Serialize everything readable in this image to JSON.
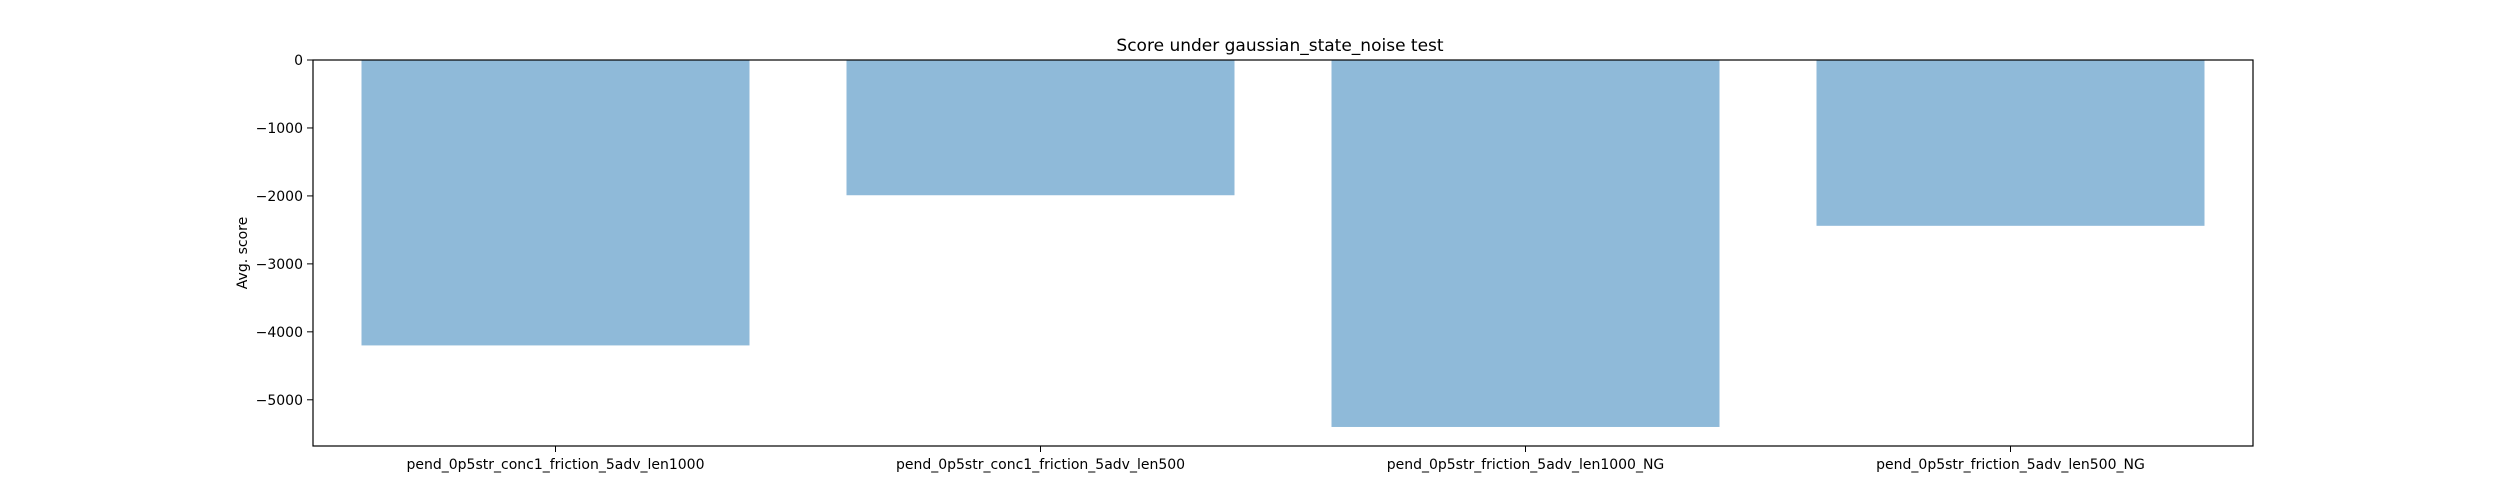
{
  "chart_data": {
    "type": "bar",
    "title": "Score under gaussian_state_noise test",
    "xlabel": "",
    "ylabel": "Avg. score",
    "categories": [
      "pend_0p5str_conc1_friction_5adv_len1000",
      "pend_0p5str_conc1_friction_5adv_len500",
      "pend_0p5str_friction_5adv_len1000_NG",
      "pend_0p5str_friction_5adv_len500_NG"
    ],
    "values": [
      -4200,
      -1990,
      -5400,
      -2440
    ],
    "ylim": [
      -5680,
      0
    ],
    "yticks": [
      0,
      -1000,
      -2000,
      -3000,
      -4000,
      -5000
    ],
    "ytick_labels": [
      "0",
      "−1000",
      "−2000",
      "−3000",
      "−4000",
      "−5000"
    ],
    "bar_color": "#8fbad9",
    "grid": false
  }
}
